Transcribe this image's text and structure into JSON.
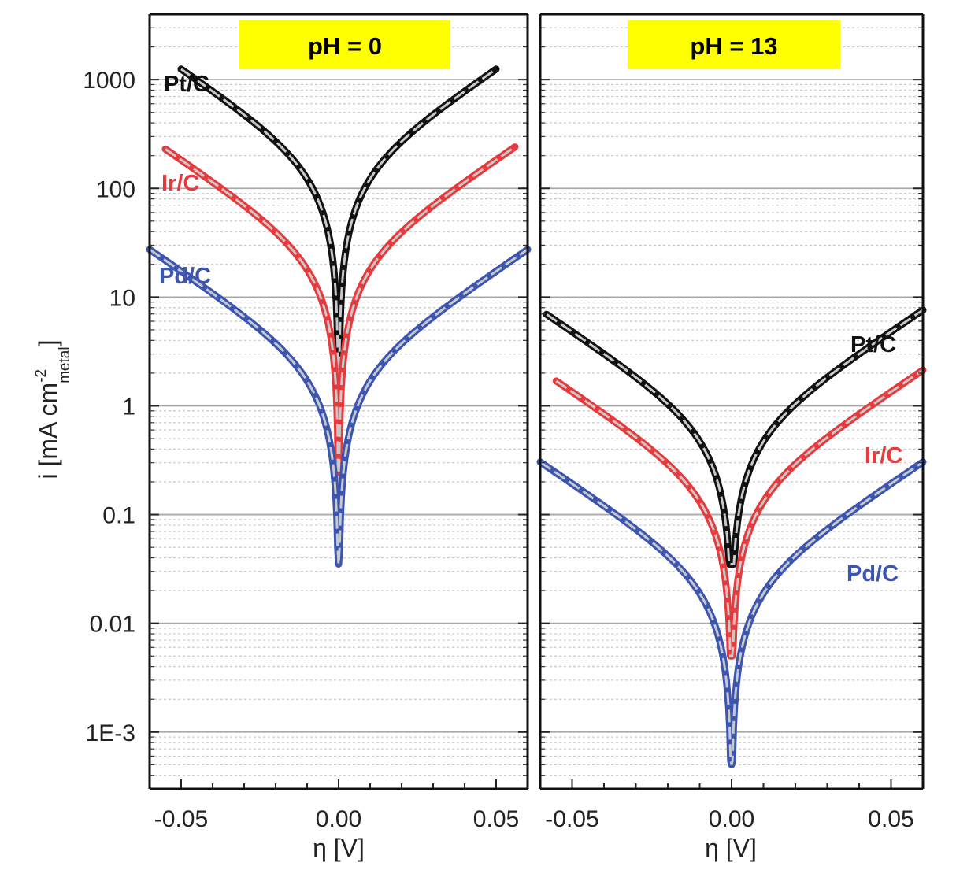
{
  "chart_data": [
    {
      "type": "line",
      "title": "pH = 0",
      "xlabel": "η [V]",
      "ylabel": "i [mA cm⁻²metal]",
      "ylabel_main": "i [mA cm",
      "ylabel_sup": "-2",
      "ylabel_sub": "metal",
      "ylabel_end": "]",
      "xlim": [
        -0.06,
        0.06
      ],
      "ylim": [
        0.0003,
        4000
      ],
      "yscale": "log",
      "x_ticks": [
        -0.05,
        0.0,
        0.05
      ],
      "x_tick_labels": [
        "-0.05",
        "0.00",
        "0.05"
      ],
      "y_ticks": [
        1000,
        100,
        10,
        1,
        0.1,
        0.01,
        0.001
      ],
      "y_tick_labels": [
        "1000",
        "100",
        "10",
        "1",
        "0.1",
        "0.01",
        "1E-3"
      ],
      "grid": true,
      "series": [
        {
          "name": "Pt/C",
          "color": "#111111",
          "i0": 130,
          "xmin": -0.05,
          "xmax": 0.05,
          "floor": 1.5
        },
        {
          "name": "Ir/C",
          "color": "#e8393c",
          "i0": 19,
          "xmin": -0.055,
          "xmax": 0.056,
          "floor": 0.08
        },
        {
          "name": "Pd/C",
          "color": "#3b55b0",
          "i0": 1.8,
          "xmin": -0.06,
          "xmax": 0.06,
          "floor": 0.035
        }
      ]
    },
    {
      "type": "line",
      "title": "pH = 13",
      "xlabel": "η [V]",
      "xlim": [
        -0.06,
        0.06
      ],
      "ylim": [
        0.0003,
        4000
      ],
      "yscale": "log",
      "x_ticks": [
        -0.05,
        0.0,
        0.05
      ],
      "x_tick_labels": [
        "-0.05",
        "0.00",
        "0.05"
      ],
      "grid": true,
      "series": [
        {
          "name": "Pt/C",
          "color": "#111111",
          "i0": 0.5,
          "xmin": -0.058,
          "xmax": 0.06,
          "floor": 0.035
        },
        {
          "name": "Ir/C",
          "color": "#e8393c",
          "i0": 0.14,
          "xmin": -0.055,
          "xmax": 0.06,
          "floor": 0.005
        },
        {
          "name": "Pd/C",
          "color": "#3b55b0",
          "i0": 0.02,
          "xmin": -0.06,
          "xmax": 0.06,
          "floor": 0.0005
        }
      ]
    }
  ]
}
